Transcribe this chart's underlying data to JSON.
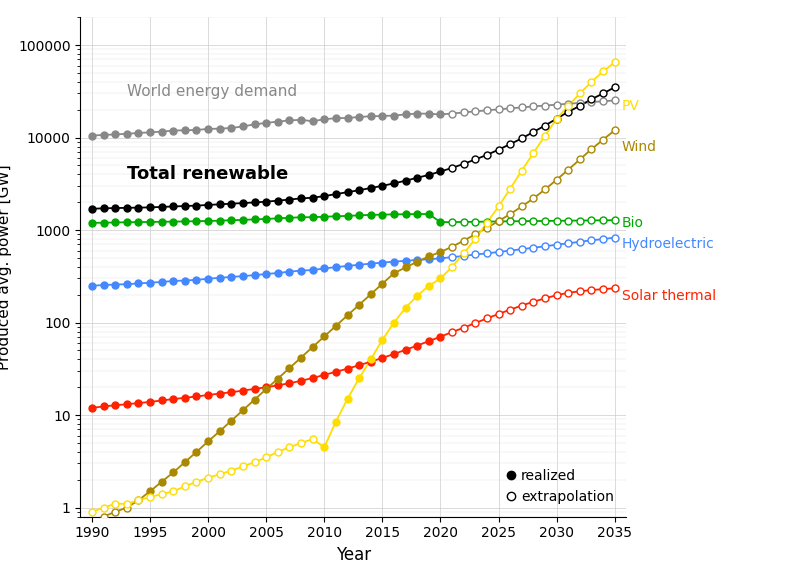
{
  "ylabel": "Produced avg. power [GW]",
  "xlabel": "Year",
  "series": {
    "world_demand": {
      "color": "#888888",
      "realized_years": [
        1990,
        1991,
        1992,
        1993,
        1994,
        1995,
        1996,
        1997,
        1998,
        1999,
        2000,
        2001,
        2002,
        2003,
        2004,
        2005,
        2006,
        2007,
        2008,
        2009,
        2010,
        2011,
        2012,
        2013,
        2014,
        2015,
        2016,
        2017,
        2018,
        2019,
        2020
      ],
      "realized_values": [
        10500,
        10700,
        10800,
        11000,
        11200,
        11400,
        11600,
        11900,
        12000,
        12100,
        12400,
        12500,
        12700,
        13200,
        13900,
        14400,
        14900,
        15300,
        15600,
        15000,
        15800,
        16200,
        16300,
        16700,
        17000,
        17100,
        17300,
        17800,
        18200,
        18100,
        17800
      ],
      "extrap_years": [
        2021,
        2022,
        2023,
        2024,
        2025,
        2026,
        2027,
        2028,
        2029,
        2030,
        2031,
        2032,
        2033,
        2034,
        2035
      ],
      "extrap_values": [
        18200,
        18700,
        19200,
        19700,
        20200,
        20700,
        21200,
        21700,
        22200,
        22700,
        23200,
        23700,
        24200,
        24700,
        25200
      ]
    },
    "total_renewable": {
      "color": "#000000",
      "realized_years": [
        1990,
        1991,
        1992,
        1993,
        1994,
        1995,
        1996,
        1997,
        1998,
        1999,
        2000,
        2001,
        2002,
        2003,
        2004,
        2005,
        2006,
        2007,
        2008,
        2009,
        2010,
        2011,
        2012,
        2013,
        2014,
        2015,
        2016,
        2017,
        2018,
        2019,
        2020
      ],
      "realized_values": [
        1700,
        1720,
        1730,
        1740,
        1750,
        1760,
        1780,
        1800,
        1820,
        1840,
        1870,
        1900,
        1930,
        1960,
        1990,
        2030,
        2080,
        2140,
        2200,
        2240,
        2330,
        2450,
        2570,
        2700,
        2850,
        3010,
        3200,
        3420,
        3680,
        3950,
        4300
      ],
      "extrap_years": [
        2021,
        2022,
        2023,
        2024,
        2025,
        2026,
        2027,
        2028,
        2029,
        2030,
        2031,
        2032,
        2033,
        2034,
        2035
      ],
      "extrap_values": [
        4700,
        5200,
        5800,
        6500,
        7400,
        8500,
        9800,
        11500,
        13500,
        16000,
        19000,
        22000,
        26000,
        30000,
        35000
      ]
    },
    "bio": {
      "color": "#00aa00",
      "realized_years": [
        1990,
        1991,
        1992,
        1993,
        1994,
        1995,
        1996,
        1997,
        1998,
        1999,
        2000,
        2001,
        2002,
        2003,
        2004,
        2005,
        2006,
        2007,
        2008,
        2009,
        2010,
        2011,
        2012,
        2013,
        2014,
        2015,
        2016,
        2017,
        2018,
        2019,
        2020
      ],
      "realized_values": [
        1200,
        1200,
        1210,
        1215,
        1220,
        1225,
        1230,
        1235,
        1240,
        1248,
        1255,
        1265,
        1278,
        1290,
        1305,
        1320,
        1340,
        1360,
        1375,
        1380,
        1395,
        1410,
        1425,
        1445,
        1460,
        1470,
        1478,
        1485,
        1490,
        1492,
        1220
      ],
      "extrap_years": [
        2021,
        2022,
        2023,
        2024,
        2025,
        2026,
        2027,
        2028,
        2029,
        2030,
        2031,
        2032,
        2033,
        2034,
        2035
      ],
      "extrap_values": [
        1220,
        1225,
        1230,
        1235,
        1240,
        1245,
        1248,
        1252,
        1256,
        1260,
        1264,
        1268,
        1272,
        1276,
        1280
      ]
    },
    "hydro": {
      "color": "#4488ff",
      "realized_years": [
        1990,
        1991,
        1992,
        1993,
        1994,
        1995,
        1996,
        1997,
        1998,
        1999,
        2000,
        2001,
        2002,
        2003,
        2004,
        2005,
        2006,
        2007,
        2008,
        2009,
        2010,
        2011,
        2012,
        2013,
        2014,
        2015,
        2016,
        2017,
        2018,
        2019,
        2020
      ],
      "realized_values": [
        250,
        255,
        258,
        260,
        265,
        270,
        275,
        282,
        285,
        290,
        298,
        305,
        312,
        318,
        326,
        335,
        344,
        355,
        365,
        370,
        385,
        398,
        410,
        422,
        434,
        445,
        456,
        466,
        476,
        484,
        495
      ],
      "extrap_years": [
        2021,
        2022,
        2023,
        2024,
        2025,
        2026,
        2027,
        2028,
        2029,
        2030,
        2031,
        2032,
        2033,
        2034,
        2035
      ],
      "extrap_values": [
        510,
        525,
        545,
        560,
        580,
        600,
        622,
        645,
        668,
        695,
        720,
        748,
        775,
        800,
        830
      ]
    },
    "solar_thermal": {
      "color": "#ff2200",
      "realized_years": [
        1990,
        1991,
        1992,
        1993,
        1994,
        1995,
        1996,
        1997,
        1998,
        1999,
        2000,
        2001,
        2002,
        2003,
        2004,
        2005,
        2006,
        2007,
        2008,
        2009,
        2010,
        2011,
        2012,
        2013,
        2014,
        2015,
        2016,
        2017,
        2018,
        2019,
        2020
      ],
      "realized_values": [
        12,
        12.4,
        12.8,
        13.1,
        13.5,
        13.9,
        14.4,
        14.9,
        15.4,
        15.9,
        16.5,
        17.1,
        17.7,
        18.4,
        19.2,
        20.0,
        21.0,
        22.1,
        23.5,
        25.2,
        27.2,
        29.4,
        31.8,
        34.6,
        37.8,
        41.5,
        45.8,
        50.8,
        56.5,
        63.0,
        70.5
      ],
      "extrap_years": [
        2021,
        2022,
        2023,
        2024,
        2025,
        2026,
        2027,
        2028,
        2029,
        2030,
        2031,
        2032,
        2033,
        2034,
        2035
      ],
      "extrap_values": [
        79,
        88,
        99,
        111,
        124,
        138,
        153,
        168,
        183,
        198,
        210,
        218,
        225,
        230,
        235
      ]
    },
    "wind": {
      "color": "#aa8800",
      "realized_years": [
        1995,
        1996,
        1997,
        1998,
        1999,
        2000,
        2001,
        2002,
        2003,
        2004,
        2005,
        2006,
        2007,
        2008,
        2009,
        2010,
        2011,
        2012,
        2013,
        2014,
        2015,
        2016,
        2017,
        2018,
        2019,
        2020
      ],
      "realized_values": [
        1.5,
        1.9,
        2.4,
        3.1,
        4.0,
        5.2,
        6.7,
        8.7,
        11.3,
        14.7,
        19.1,
        24.8,
        32.2,
        41.9,
        54.5,
        70.8,
        92.2,
        119.8,
        155.7,
        202.4,
        263.2,
        342.2,
        395.0,
        455.0,
        520.0,
        580.0
      ],
      "extrap_years": [
        1990,
        1991,
        1992,
        1993,
        1994,
        2021,
        2022,
        2023,
        2024,
        2025,
        2026,
        2027,
        2028,
        2029,
        2030,
        2031,
        2032,
        2033,
        2034,
        2035
      ],
      "extrap_values": [
        0.7,
        0.8,
        0.9,
        1.0,
        1.2,
        660.0,
        770.0,
        900.0,
        1060.0,
        1250.0,
        1490.0,
        1800.0,
        2200.0,
        2750.0,
        3500.0,
        4500.0,
        5800.0,
        7500.0,
        9500.0,
        12000.0
      ]
    },
    "pv": {
      "color": "#ffdd00",
      "realized_years": [
        2010,
        2011,
        2012,
        2013,
        2014,
        2015,
        2016,
        2017,
        2018,
        2019,
        2020
      ],
      "realized_values": [
        4.5,
        8.5,
        15.0,
        25.0,
        40.0,
        65.0,
        100.0,
        145.0,
        195.0,
        250.0,
        300.0
      ],
      "extrap_years": [
        1990,
        1991,
        1992,
        1993,
        1994,
        1995,
        1996,
        1997,
        1998,
        1999,
        2000,
        2001,
        2002,
        2003,
        2004,
        2005,
        2006,
        2007,
        2008,
        2009,
        2021,
        2022,
        2023,
        2024,
        2025,
        2026,
        2027,
        2028,
        2029,
        2030,
        2031,
        2032,
        2033,
        2034,
        2035
      ],
      "extrap_values": [
        0.9,
        1.0,
        1.1,
        1.1,
        1.2,
        1.3,
        1.4,
        1.5,
        1.7,
        1.9,
        2.1,
        2.3,
        2.5,
        2.8,
        3.1,
        3.5,
        4.0,
        4.5,
        5.0,
        5.5,
        400.0,
        560.0,
        800.0,
        1200.0,
        1800.0,
        2800.0,
        4400.0,
        6800.0,
        10500.0,
        16000.0,
        22000.0,
        30000.0,
        40000.0,
        52000.0,
        65000.0
      ]
    }
  }
}
